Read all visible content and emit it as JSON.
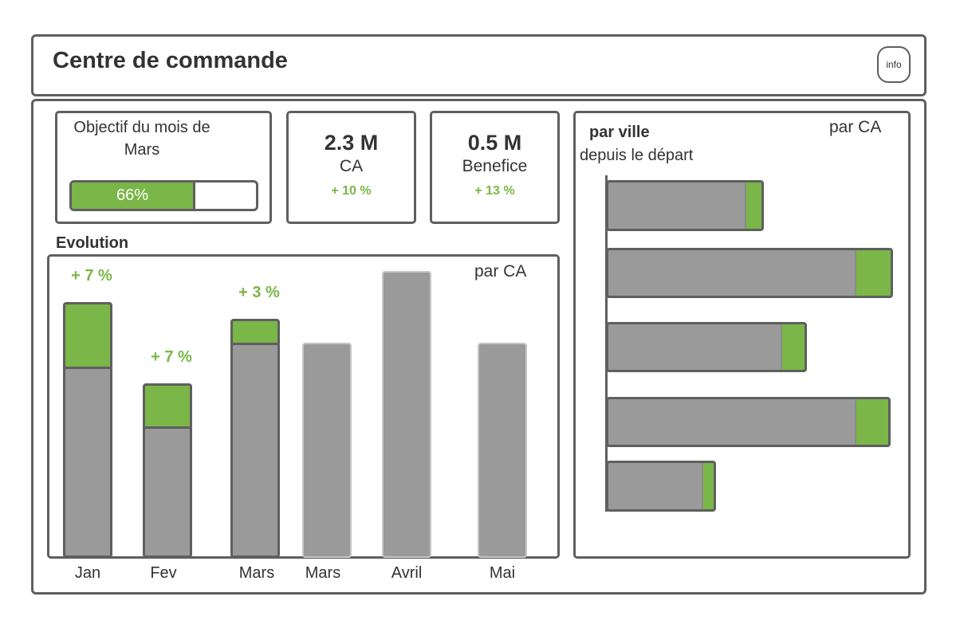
{
  "header": {
    "title": "Centre de commande",
    "info_label": "info"
  },
  "objective": {
    "label": "Objectif du mois de Mars",
    "progress_label": "66%",
    "progress_value": 0.66
  },
  "kpis": [
    {
      "value": "2.3 M",
      "label": "CA",
      "delta": "+ 10 %"
    },
    {
      "value": "0.5 M",
      "label": "Benefice",
      "delta": "+ 13 %"
    }
  ],
  "evolution": {
    "title": "Evolution",
    "subtitle": "par CA"
  },
  "city": {
    "title": "par ville",
    "subtitle": "depuis le départ",
    "metric": "par CA"
  },
  "colors": {
    "green": "#7ab648",
    "grey": "#9a9a9a",
    "border": "#5f5f5f"
  },
  "chart_data": [
    {
      "type": "bar",
      "title": "Evolution",
      "subtitle": "par CA",
      "categories": [
        "Jan",
        "Fev",
        "Mars",
        "Mars",
        "Avril",
        "Mai"
      ],
      "series": [
        {
          "values": [
            80,
            55,
            90,
            90,
            120,
            90
          ]
        },
        {
          "values": [
            27,
            18,
            10,
            0,
            0,
            0
          ]
        }
      ],
      "delta_labels": [
        "+ 7 %",
        "+ 7 %",
        "+ 3 %",
        "",
        "",
        ""
      ],
      "stacked": true,
      "ylim": [
        0,
        120
      ],
      "grid": false
    },
    {
      "type": "bar",
      "orientation": "horizontal",
      "title": "par ville",
      "subtitle": "depuis le départ",
      "metric": "par CA",
      "categories": [
        "",
        "",
        "",
        "",
        ""
      ],
      "series": [
        {
          "values": [
            57,
            103,
            72,
            103,
            39
          ]
        },
        {
          "values": [
            9,
            17,
            12,
            16,
            7
          ]
        }
      ],
      "stacked": true,
      "xlim": [
        0,
        120
      ],
      "grid": false
    }
  ]
}
